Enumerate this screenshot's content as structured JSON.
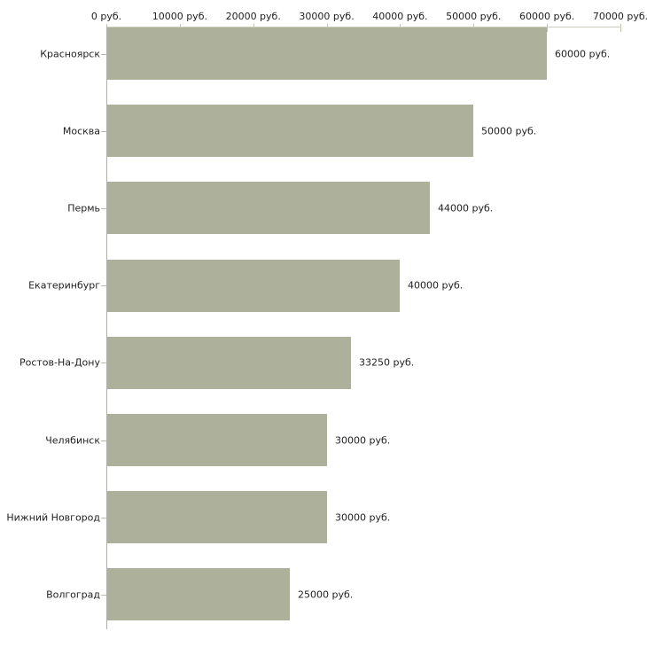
{
  "chart_data": {
    "type": "bar",
    "orientation": "horizontal",
    "title": "",
    "xlabel": "",
    "ylabel": "",
    "categories": [
      "Красноярск",
      "Москва",
      "Пермь",
      "Екатеринбург",
      "Ростов-На-Дону",
      "Челябинск",
      "Нижний Новгород",
      "Волгоград"
    ],
    "values": [
      60000,
      50000,
      44000,
      40000,
      33250,
      30000,
      30000,
      25000
    ],
    "value_labels": [
      "60000 руб.",
      "50000 руб.",
      "44000 руб.",
      "40000 руб.",
      "33250 руб.",
      "30000 руб.",
      "30000 руб.",
      "25000 руб."
    ],
    "x_ticks": [
      0,
      10000,
      20000,
      30000,
      40000,
      50000,
      60000,
      70000
    ],
    "x_tick_labels": [
      "0 руб.",
      "10000 руб.",
      "20000 руб.",
      "30000 руб.",
      "40000 руб.",
      "50000 руб.",
      "60000 руб.",
      "70000 руб."
    ],
    "xlim": [
      0,
      70000
    ],
    "axis_position": "top",
    "grid": false,
    "legend": null,
    "colors": {
      "bar_fill": "#adb19b",
      "h_axis_line": "#cdcdba",
      "v_axis_line": "#b0b0ab",
      "x_tick_mark": "#c2c2b0",
      "cat_tick_mark": "#bcbcaa",
      "text": "#1f1f1f",
      "background": "#ffffff"
    }
  }
}
